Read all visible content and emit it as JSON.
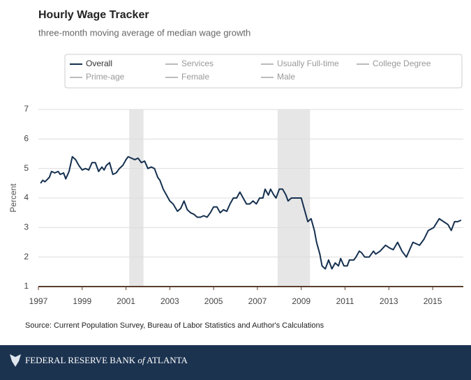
{
  "chart_data": {
    "type": "line",
    "title": "Hourly Wage Tracker",
    "subtitle": "three-month moving average of median wage growth",
    "ylabel": "Percent",
    "source": "Source: Current Population Survey, Bureau of Labor Statistics and Author's Calculations",
    "footer": {
      "first": "FEDERAL RESERVE BANK",
      "middle": "of",
      "last": "ATLANTA"
    },
    "xlim": [
      1997,
      2016.4
    ],
    "xticks": [
      1997,
      1999,
      2001,
      2003,
      2005,
      2007,
      2009,
      2011,
      2013,
      2015
    ],
    "ylim": [
      1,
      7
    ],
    "yticks": [
      1,
      2,
      3,
      4,
      5,
      6,
      7
    ],
    "grid": true,
    "shaded_ranges": [
      [
        2001.15,
        2001.8
      ],
      [
        2007.92,
        2009.4
      ]
    ],
    "hidden_series": [
      "Services",
      "Usually Full-time",
      "College Degree",
      "Prime-age",
      "Female",
      "Male"
    ],
    "x": [
      1997.1,
      1997.2,
      1997.3,
      1997.5,
      1997.6,
      1997.75,
      1997.9,
      1998.0,
      1998.15,
      1998.25,
      1998.4,
      1998.55,
      1998.7,
      1998.85,
      1999.0,
      1999.15,
      1999.3,
      1999.45,
      1999.6,
      1999.75,
      1999.9,
      2000.0,
      2000.1,
      2000.25,
      2000.4,
      2000.55,
      2000.7,
      2000.85,
      2001.0,
      2001.1,
      2001.25,
      2001.4,
      2001.55,
      2001.7,
      2001.85,
      2002.0,
      2002.15,
      2002.3,
      2002.45,
      2002.55,
      2002.7,
      2002.85,
      2003.0,
      2003.15,
      2003.35,
      2003.5,
      2003.65,
      2003.8,
      2003.95,
      2004.1,
      2004.25,
      2004.4,
      2004.55,
      2004.7,
      2004.85,
      2005.0,
      2005.15,
      2005.3,
      2005.45,
      2005.6,
      2005.75,
      2005.9,
      2006.05,
      2006.2,
      2006.35,
      2006.5,
      2006.65,
      2006.8,
      2006.95,
      2007.1,
      2007.25,
      2007.35,
      2007.5,
      2007.6,
      2007.75,
      2007.85,
      2008.0,
      2008.15,
      2008.3,
      2008.4,
      2008.55,
      2008.75,
      2009.0,
      2009.15,
      2009.3,
      2009.45,
      2009.6,
      2009.7,
      2009.85,
      2009.95,
      2010.1,
      2010.25,
      2010.4,
      2010.55,
      2010.7,
      2010.8,
      2010.95,
      2011.1,
      2011.2,
      2011.4,
      2011.5,
      2011.65,
      2011.75,
      2011.9,
      2012.1,
      2012.3,
      2012.4,
      2012.6,
      2012.85,
      2013.05,
      2013.2,
      2013.4,
      2013.6,
      2013.8,
      2014.1,
      2014.4,
      2014.6,
      2014.8,
      2015.05,
      2015.3,
      2015.5,
      2015.7,
      2015.85,
      2016.0,
      2016.15,
      2016.3
    ],
    "series": [
      {
        "name": "Overall",
        "color": "#15304f",
        "values": [
          4.5,
          4.6,
          4.55,
          4.7,
          4.9,
          4.85,
          4.9,
          4.8,
          4.85,
          4.65,
          4.9,
          5.4,
          5.3,
          5.1,
          4.95,
          5.0,
          4.95,
          5.2,
          5.2,
          4.9,
          5.05,
          4.95,
          5.1,
          5.2,
          4.8,
          4.85,
          5.0,
          5.1,
          5.3,
          5.4,
          5.35,
          5.3,
          5.35,
          5.2,
          5.25,
          5.0,
          5.05,
          5.0,
          4.7,
          4.6,
          4.3,
          4.1,
          3.9,
          3.8,
          3.55,
          3.65,
          3.9,
          3.6,
          3.5,
          3.45,
          3.35,
          3.35,
          3.4,
          3.35,
          3.5,
          3.7,
          3.7,
          3.5,
          3.6,
          3.55,
          3.8,
          4.0,
          4.0,
          4.2,
          4.0,
          3.8,
          3.8,
          3.9,
          3.8,
          4.0,
          4.0,
          4.3,
          4.1,
          4.3,
          4.1,
          4.0,
          4.3,
          4.3,
          4.1,
          3.9,
          4.0,
          4.0,
          4.0,
          3.6,
          3.2,
          3.3,
          2.9,
          2.5,
          2.1,
          1.7,
          1.6,
          1.9,
          1.6,
          1.8,
          1.7,
          1.95,
          1.7,
          1.7,
          1.9,
          1.9,
          2.0,
          2.2,
          2.15,
          2.0,
          2.0,
          2.2,
          2.1,
          2.2,
          2.4,
          2.3,
          2.25,
          2.5,
          2.2,
          2.0,
          2.5,
          2.4,
          2.6,
          2.9,
          3.0,
          3.3,
          3.2,
          3.1,
          2.9,
          3.2,
          3.2,
          3.25
        ]
      }
    ]
  }
}
